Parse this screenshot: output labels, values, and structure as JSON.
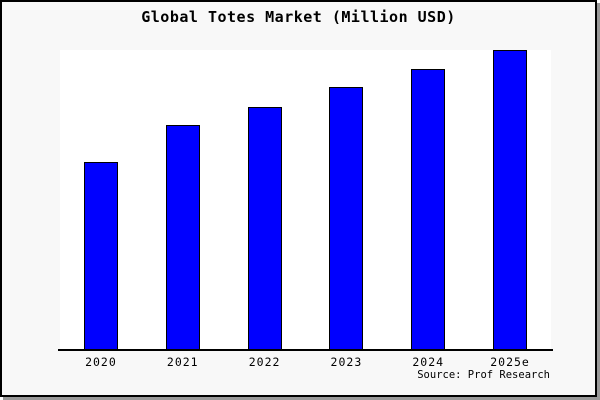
{
  "title": "Global Totes Market (Million USD)",
  "source": "Source: Prof Research",
  "colors": {
    "card_background": "#f8f8f8",
    "plot_background": "#ffffff",
    "bar_fill": "#0000ff",
    "bar_border": "#000000",
    "axis": "#000000",
    "card_border": "#000000",
    "card_shadow": "#999999",
    "text": "#000000"
  },
  "chart_data": {
    "type": "bar",
    "title": "Global Totes Market (Million USD)",
    "categories": [
      "2020",
      "2021",
      "2022",
      "2023",
      "2024",
      "2025e"
    ],
    "values": [
      62.5,
      75,
      81,
      87.5,
      93.6,
      100
    ],
    "xlabel": "",
    "ylabel": "",
    "ylim": [
      0,
      100
    ],
    "grid": false,
    "y_axis_visible": false,
    "legend": "none",
    "annotation": "Source: Prof Research"
  }
}
